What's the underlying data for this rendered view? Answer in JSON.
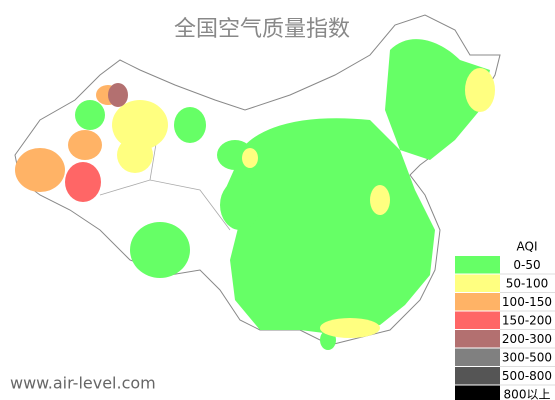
{
  "title": "全国空气质量指数",
  "legend": {
    "title": "AQI",
    "items": [
      {
        "label": "0-50",
        "color": "#66ff66"
      },
      {
        "label": "50-100",
        "color": "#ffff80"
      },
      {
        "label": "100-150",
        "color": "#ffb366"
      },
      {
        "label": "150-200",
        "color": "#ff6666"
      },
      {
        "label": "200-300",
        "color": "#b37070"
      },
      {
        "label": "300-500",
        "color": "#808080"
      },
      {
        "label": "500-800",
        "color": "#555555"
      },
      {
        "label": "800以上",
        "color": "#000000"
      }
    ]
  },
  "watermark": "www.air-level.com"
}
